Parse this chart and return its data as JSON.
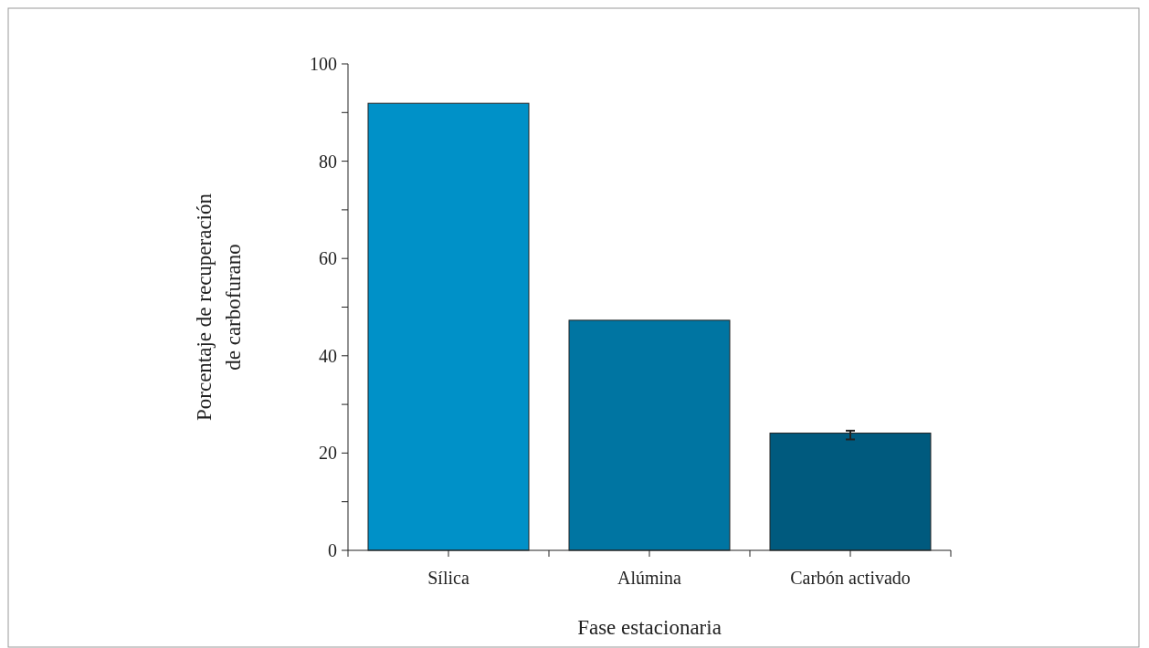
{
  "chart_data": {
    "type": "bar",
    "xlabel": "Fase estacionaria",
    "ylabel": "Porcentaje de recuperación de carbofurano",
    "categories": [
      "Sílica",
      "Alúmina",
      "Carbón activado"
    ],
    "values": [
      91.9,
      47.3,
      24.1
    ],
    "colors": [
      "#0091c8",
      "#0075a2",
      "#005a7e"
    ],
    "errors": [
      null,
      null,
      [
        22.8,
        24.6
      ]
    ],
    "ylim": [
      0,
      100
    ],
    "yticks": [
      0,
      {
        "value": 10,
        "label": null
      },
      20,
      {
        "value": 30,
        "label": null
      },
      40,
      {
        "value": 50,
        "label": null
      },
      60,
      {
        "value": 70,
        "label": null
      },
      80,
      {
        "value": 90,
        "label": null
      },
      100
    ],
    "grid": false
  }
}
